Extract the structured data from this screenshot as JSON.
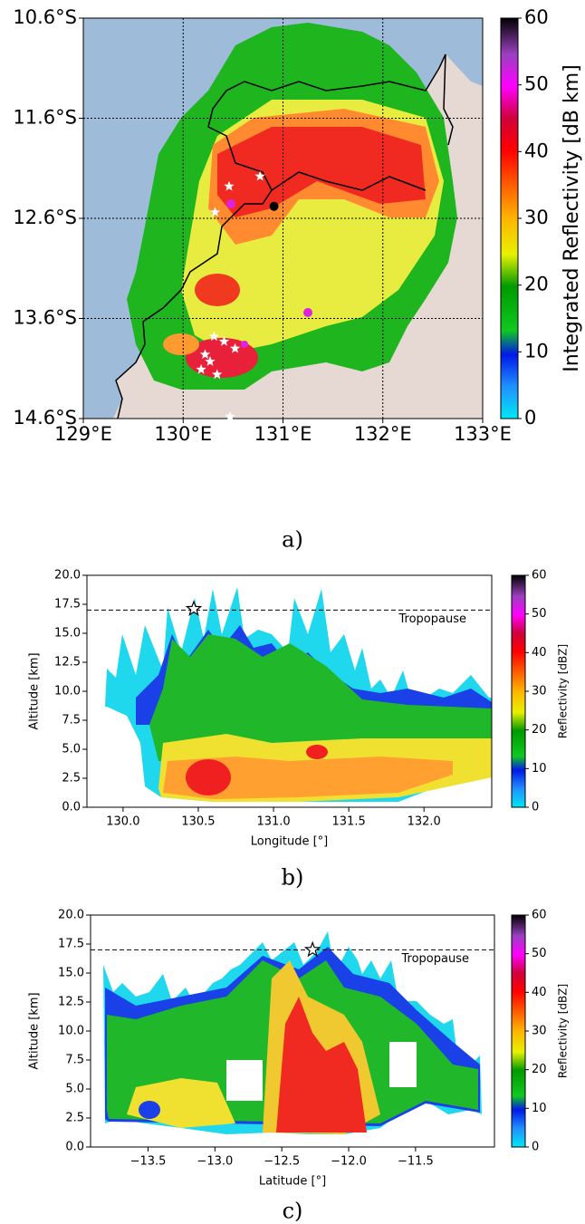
{
  "chart_data": [
    {
      "type": "map",
      "caption": "a)",
      "xlim": [
        129,
        133
      ],
      "ylim": [
        -14.6,
        -10.6
      ],
      "xticks": [
        {
          "value": 129,
          "label": "129°E"
        },
        {
          "value": 130,
          "label": "130°E"
        },
        {
          "value": 131,
          "label": "131°E"
        },
        {
          "value": 132,
          "label": "132°E"
        },
        {
          "value": 133,
          "label": "133°E"
        }
      ],
      "yticks": [
        {
          "value": -10.6,
          "label": "10.6°S"
        },
        {
          "value": -11.6,
          "label": "11.6°S"
        },
        {
          "value": -12.6,
          "label": "12.6°S"
        },
        {
          "value": -13.6,
          "label": "13.6°S"
        },
        {
          "value": -14.6,
          "label": "14.6°S"
        }
      ],
      "grid": true,
      "colorbar": {
        "label": "Integrated Reflectivity [dB km]",
        "lim": [
          0,
          60
        ],
        "ticks": [
          0,
          10,
          20,
          30,
          40,
          50,
          60
        ]
      },
      "markers": {
        "color": "#ffffff",
        "x": [
          130.77,
          130.46,
          130.32,
          130.31,
          130.41,
          130.52,
          130.22,
          130.27,
          130.18,
          130.34,
          130.47
        ],
        "y": [
          -12.18,
          -12.28,
          -12.54,
          -13.78,
          -13.83,
          -13.9,
          -13.96,
          -14.03,
          -14.11,
          -14.16,
          -14.58
        ]
      },
      "radar": {
        "color": "#000000",
        "x": [
          130.91
        ],
        "y": [
          -12.48
        ]
      }
    },
    {
      "type": "section",
      "caption": "b)",
      "xlabel": "Longitude [°]",
      "ylabel": "Altitude [km]",
      "xlim": [
        129.76,
        132.45
      ],
      "ylim": [
        0,
        20
      ],
      "xticks": [
        {
          "value": 130,
          "label": "130.0"
        },
        {
          "value": 130.5,
          "label": "130.5"
        },
        {
          "value": 131,
          "label": "131.0"
        },
        {
          "value": 131.5,
          "label": "131.5"
        },
        {
          "value": 132,
          "label": "132.0"
        }
      ],
      "yticks": [
        {
          "value": 0,
          "label": "0.0"
        },
        2.5,
        {
          "value": 5,
          "label": "5.0"
        },
        7.5,
        {
          "value": 10,
          "label": "10.0"
        },
        12.5,
        {
          "value": 15,
          "label": "15.0"
        },
        17.5,
        {
          "value": 20,
          "label": "20.0"
        }
      ],
      "tropopause": {
        "value": 17,
        "label": "Tropopause"
      },
      "star": {
        "x": 130.47,
        "y": 17.1
      },
      "colorbar": {
        "label": "Reflectivity [dBZ]",
        "lim": [
          0,
          60
        ],
        "ticks": [
          0,
          10,
          20,
          30,
          40,
          50,
          60
        ]
      }
    },
    {
      "type": "section",
      "caption": "c)",
      "xlabel": "Latitude [°]",
      "ylabel": "Altitude [km]",
      "xlim": [
        -13.93,
        -10.91
      ],
      "ylim": [
        0,
        20
      ],
      "xticks": [
        {
          "value": -13.5,
          "label": "−13.5"
        },
        {
          "value": -13,
          "label": "−13.0"
        },
        {
          "value": -12.5,
          "label": "−12.5"
        },
        {
          "value": -12,
          "label": "−12.0"
        },
        {
          "value": -11.5,
          "label": "−11.5"
        }
      ],
      "yticks": [
        {
          "value": 0,
          "label": "0.0"
        },
        2.5,
        {
          "value": 5,
          "label": "5.0"
        },
        7.5,
        {
          "value": 10,
          "label": "10.0"
        },
        12.5,
        {
          "value": 15,
          "label": "15.0"
        },
        17.5,
        {
          "value": 20,
          "label": "20.0"
        }
      ],
      "tropopause": {
        "value": 17,
        "label": "Tropopause"
      },
      "star": {
        "x": -12.27,
        "y": 17
      },
      "colorbar": {
        "label": "Reflectivity [dBZ]",
        "lim": [
          0,
          60
        ],
        "ticks": [
          0,
          10,
          20,
          30,
          40,
          50,
          60
        ]
      }
    }
  ]
}
